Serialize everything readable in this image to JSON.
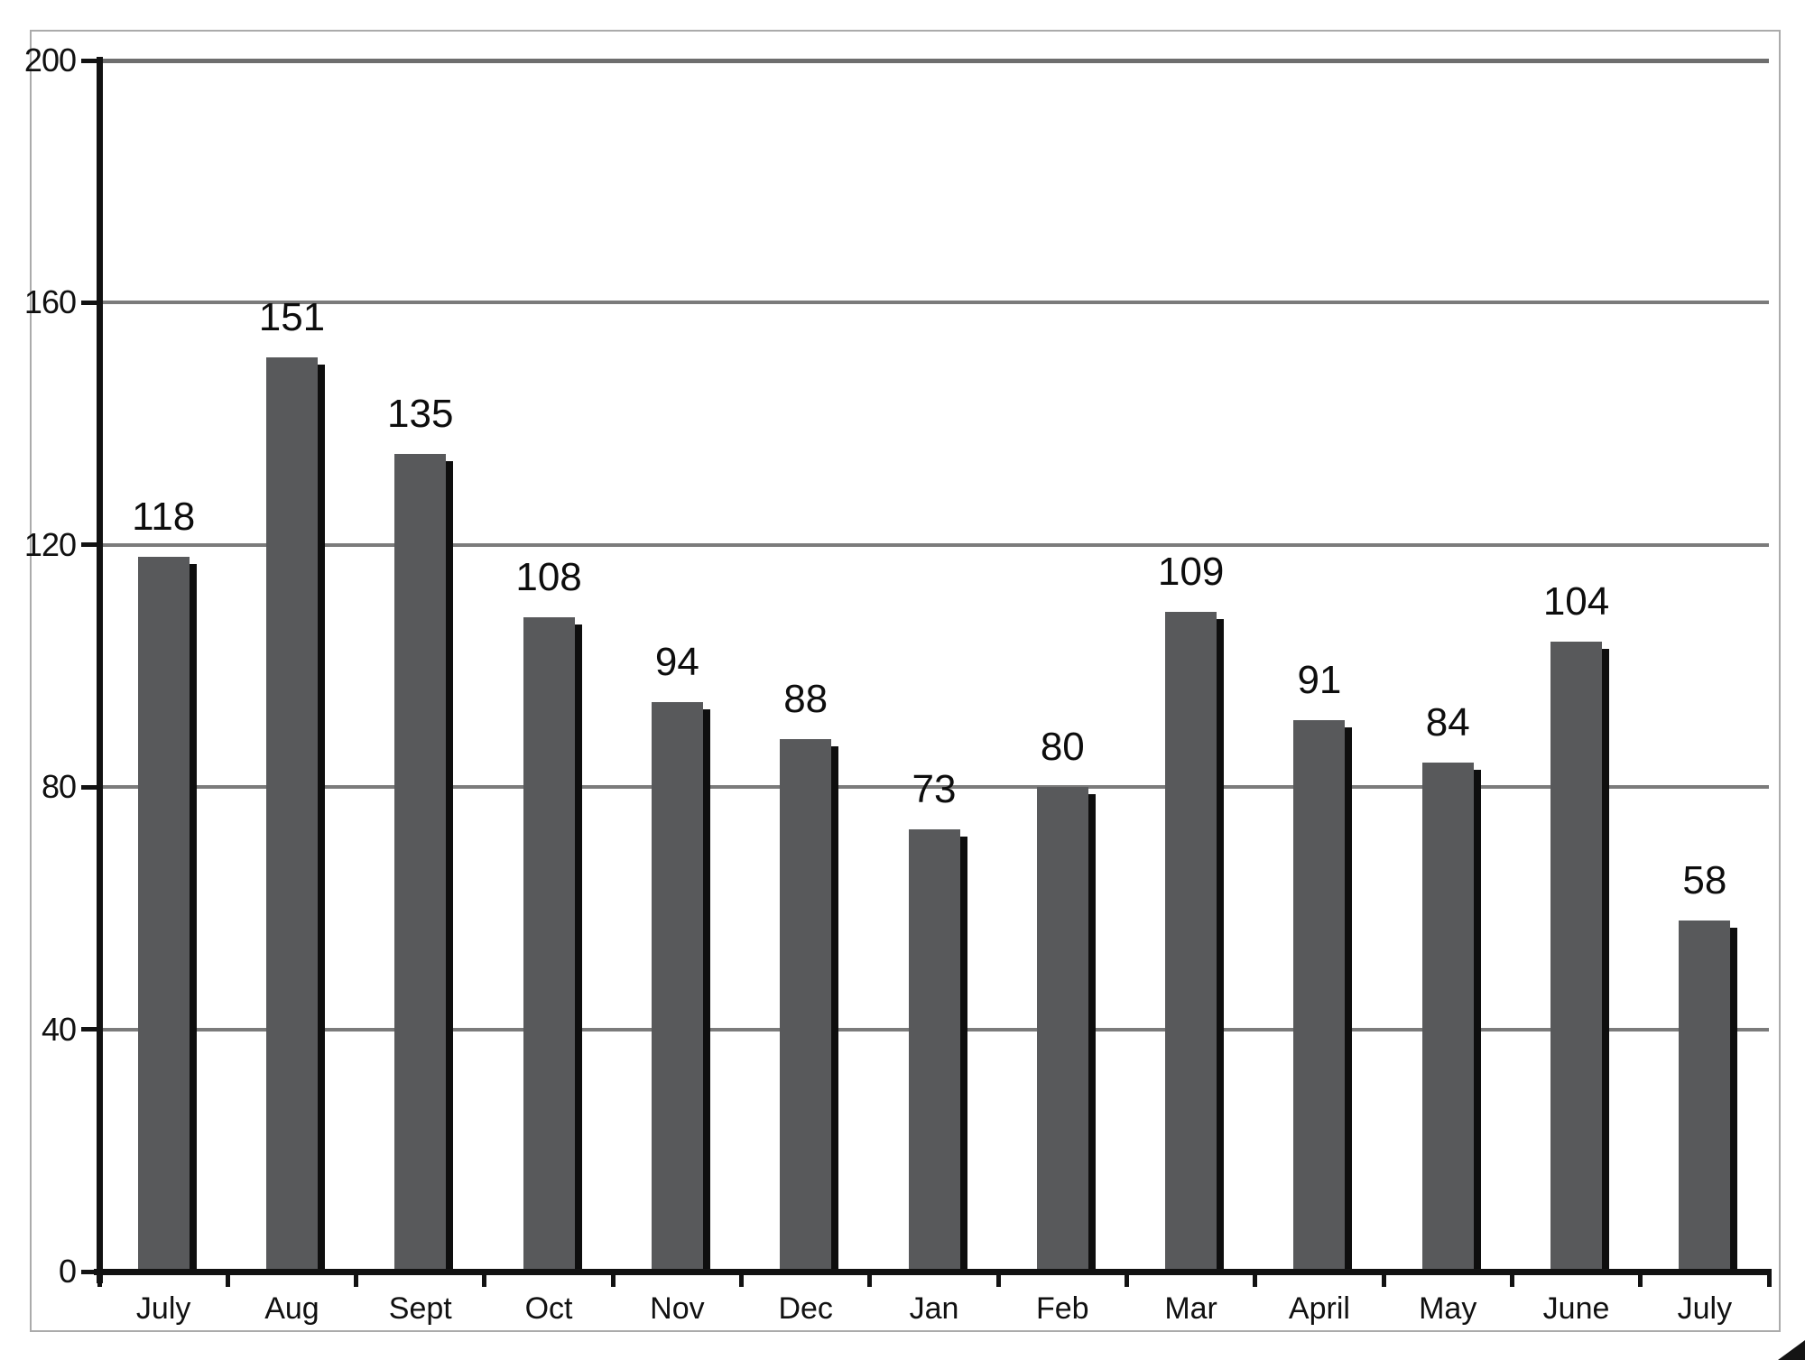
{
  "chart_data": {
    "type": "bar",
    "categories": [
      "July",
      "Aug",
      "Sept",
      "Oct",
      "Nov",
      "Dec",
      "Jan",
      "Feb",
      "Mar",
      "April",
      "May",
      "June",
      "July"
    ],
    "values": [
      118,
      151,
      135,
      108,
      94,
      88,
      73,
      80,
      109,
      91,
      84,
      104,
      58
    ],
    "title": "",
    "xlabel": "",
    "ylabel": "",
    "ylim": [
      0,
      200
    ],
    "y_ticks": [
      0,
      40,
      80,
      120,
      160,
      200
    ],
    "grid": "horizontal",
    "legend": "none",
    "data_labels": "above-bars",
    "colors": {
      "bar_fill": "#58595b",
      "bar_shadow": "#0e0e0e",
      "gridline": "#7b7b7b",
      "top_gridline": "#6e6e6e",
      "axis": "#121212",
      "frame_border": "#ababab",
      "label_text": "#111111",
      "background": "#ffffff"
    }
  },
  "decorations": {
    "corner_mark": "black triangle tip at bottom-right page corner"
  }
}
